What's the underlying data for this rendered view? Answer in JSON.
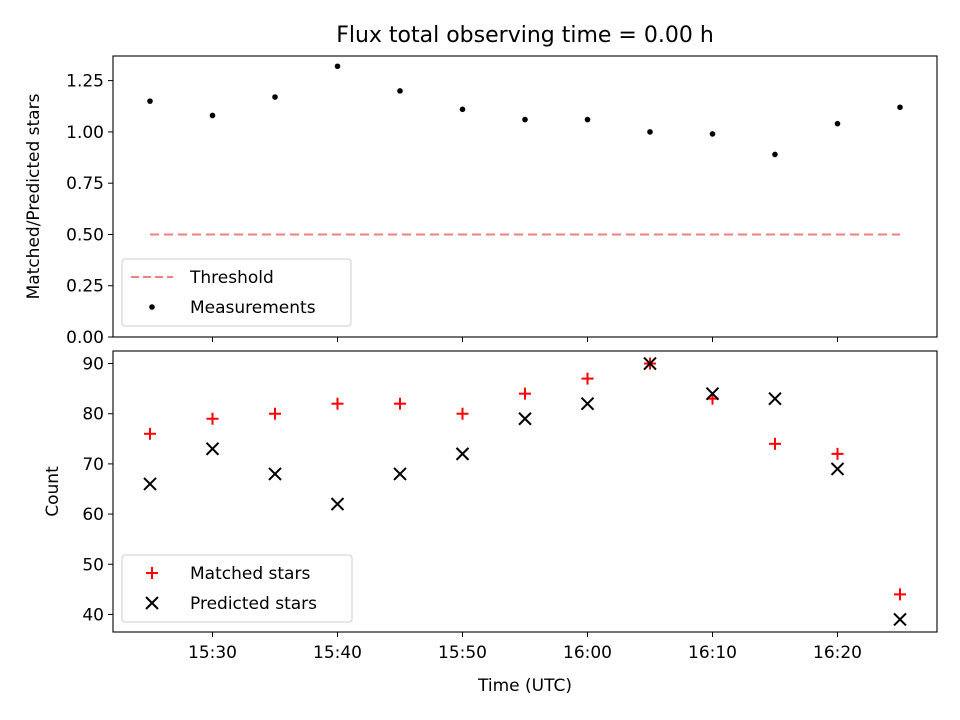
{
  "chart_data": [
    {
      "type": "scatter",
      "title": "Flux total observing time = 0.00 h",
      "xlabel": "",
      "ylabel": "Matched/Predicted stars",
      "ylim": [
        0,
        1.37
      ],
      "yticks": [
        "0.00",
        "0.25",
        "0.50",
        "0.75",
        "1.00",
        "1.25"
      ],
      "ytick_values": [
        0,
        0.25,
        0.5,
        0.75,
        1.0,
        1.25
      ],
      "x": [
        "15:25",
        "15:30",
        "15:35",
        "15:40",
        "15:45",
        "15:50",
        "15:55",
        "16:00",
        "16:05",
        "16:10",
        "16:15",
        "16:20",
        "16:25"
      ],
      "series": [
        {
          "name": "Threshold",
          "style": "dashed-line",
          "color": "#f08080",
          "x": [
            "15:25",
            "16:25"
          ],
          "values": [
            0.5,
            0.5
          ]
        },
        {
          "name": "Measurements",
          "style": "dot",
          "color": "#000000",
          "values": [
            1.15,
            1.08,
            1.17,
            1.32,
            1.2,
            1.11,
            1.06,
            1.06,
            1.0,
            0.99,
            0.89,
            1.04,
            1.12
          ]
        }
      ],
      "legend": "lower-left",
      "grid": false
    },
    {
      "type": "scatter",
      "title": "",
      "xlabel": "Time (UTC)",
      "ylabel": "Count",
      "ylim": [
        36.5,
        92.5
      ],
      "yticks": [
        "40",
        "50",
        "60",
        "70",
        "80",
        "90"
      ],
      "ytick_values": [
        40,
        50,
        60,
        70,
        80,
        90
      ],
      "xticks": [
        "15:30",
        "15:40",
        "15:50",
        "16:00",
        "16:10",
        "16:20"
      ],
      "x": [
        "15:25",
        "15:30",
        "15:35",
        "15:40",
        "15:45",
        "15:50",
        "15:55",
        "16:00",
        "16:05",
        "16:10",
        "16:15",
        "16:20",
        "16:25"
      ],
      "series": [
        {
          "name": "Matched stars",
          "marker": "plus",
          "color": "#ff0000",
          "values": [
            76,
            79,
            80,
            82,
            82,
            80,
            84,
            87,
            90,
            83,
            74,
            72,
            44
          ]
        },
        {
          "name": "Predicted stars",
          "marker": "x",
          "color": "#000000",
          "values": [
            66,
            73,
            68,
            62,
            68,
            72,
            79,
            82,
            90,
            84,
            83,
            69,
            39
          ]
        }
      ],
      "legend": "lower-left",
      "grid": false
    }
  ]
}
